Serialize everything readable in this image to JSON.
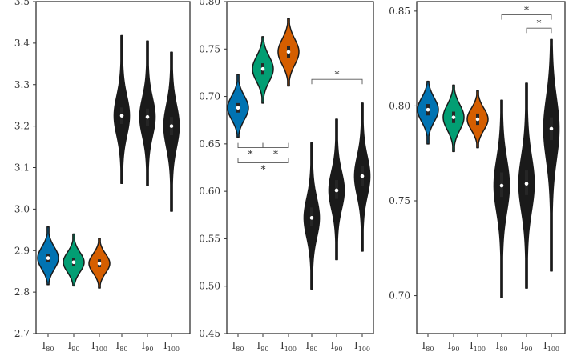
{
  "chart_data": [
    {
      "type": "violin",
      "ylim": [
        2.7,
        3.5
      ],
      "yticks": [
        2.7,
        2.8,
        2.9,
        3.0,
        3.1,
        3.2,
        3.3,
        3.4,
        3.5
      ],
      "ytick_labels": [
        "2.7",
        "2.8",
        "2.9",
        "3.0",
        "3.1",
        "3.2",
        "3.3",
        "3.4",
        "3.5"
      ],
      "categories": [
        {
          "base": "I",
          "sub": "80"
        },
        {
          "base": "I",
          "sub": "90"
        },
        {
          "base": "I",
          "sub": "100"
        },
        {
          "base": "I",
          "sub": "80"
        },
        {
          "base": "I",
          "sub": "90"
        },
        {
          "base": "I",
          "sub": "100"
        }
      ],
      "violins": [
        {
          "median": 2.882,
          "min": 2.818,
          "max": 2.957,
          "q1": 2.872,
          "q3": 2.892,
          "color": "#0173b2",
          "shape": "bulb"
        },
        {
          "median": 2.872,
          "min": 2.815,
          "max": 2.94,
          "q1": 2.862,
          "q3": 2.882,
          "color": "#029e73",
          "shape": "bulb"
        },
        {
          "median": 2.869,
          "min": 2.81,
          "max": 2.93,
          "q1": 2.86,
          "q3": 2.879,
          "color": "#d55e00",
          "shape": "bulb"
        },
        {
          "median": 3.225,
          "min": 3.062,
          "max": 3.418,
          "q1": 3.205,
          "q3": 3.245,
          "color": "#1a1a1a",
          "shape": "long"
        },
        {
          "median": 3.222,
          "min": 3.057,
          "max": 3.405,
          "q1": 3.2,
          "q3": 3.242,
          "color": "#1a1a1a",
          "shape": "long"
        },
        {
          "median": 3.2,
          "min": 2.995,
          "max": 3.378,
          "q1": 3.178,
          "q3": 3.222,
          "color": "#1a1a1a",
          "shape": "long"
        }
      ],
      "annotations": []
    },
    {
      "type": "violin",
      "ylim": [
        0.45,
        0.8
      ],
      "yticks": [
        0.45,
        0.5,
        0.55,
        0.6,
        0.65,
        0.7,
        0.75,
        0.8
      ],
      "ytick_labels": [
        "0.45",
        "0.50",
        "0.55",
        "0.60",
        "0.65",
        "0.70",
        "0.75",
        "0.80"
      ],
      "categories": [
        {
          "base": "I",
          "sub": "80"
        },
        {
          "base": "I",
          "sub": "90"
        },
        {
          "base": "I",
          "sub": "100"
        },
        {
          "base": "I",
          "sub": "80"
        },
        {
          "base": "I",
          "sub": "90"
        },
        {
          "base": "I",
          "sub": "100"
        }
      ],
      "violins": [
        {
          "median": 0.688,
          "min": 0.657,
          "max": 0.723,
          "q1": 0.683,
          "q3": 0.693,
          "color": "#0173b2",
          "shape": "bulb"
        },
        {
          "median": 0.729,
          "min": 0.693,
          "max": 0.763,
          "q1": 0.723,
          "q3": 0.735,
          "color": "#029e73",
          "shape": "bulb"
        },
        {
          "median": 0.747,
          "min": 0.711,
          "max": 0.782,
          "q1": 0.741,
          "q3": 0.753,
          "color": "#d55e00",
          "shape": "bulb"
        },
        {
          "median": 0.572,
          "min": 0.497,
          "max": 0.651,
          "q1": 0.563,
          "q3": 0.583,
          "color": "#1a1a1a",
          "shape": "long"
        },
        {
          "median": 0.601,
          "min": 0.528,
          "max": 0.676,
          "q1": 0.592,
          "q3": 0.612,
          "color": "#1a1a1a",
          "shape": "long"
        },
        {
          "median": 0.616,
          "min": 0.537,
          "max": 0.693,
          "q1": 0.606,
          "q3": 0.627,
          "color": "#1a1a1a",
          "shape": "long"
        }
      ],
      "annotations": [
        {
          "from": 0,
          "to": 1,
          "y": 0.646,
          "side": "below",
          "label": "*"
        },
        {
          "from": 1,
          "to": 2,
          "y": 0.646,
          "side": "below",
          "label": "*"
        },
        {
          "from": 0,
          "to": 2,
          "y": 0.63,
          "side": "below",
          "label": "*"
        },
        {
          "from": 3,
          "to": 5,
          "y": 0.718,
          "side": "above",
          "label": "*"
        }
      ]
    },
    {
      "type": "violin",
      "ylim": [
        0.68,
        0.855
      ],
      "yticks": [
        0.7,
        0.75,
        0.8,
        0.85
      ],
      "ytick_labels": [
        "0.70",
        "0.75",
        "0.80",
        "0.85"
      ],
      "categories": [
        {
          "base": "I",
          "sub": "80"
        },
        {
          "base": "I",
          "sub": "90"
        },
        {
          "base": "I",
          "sub": "100"
        },
        {
          "base": "I",
          "sub": "80"
        },
        {
          "base": "I",
          "sub": "90"
        },
        {
          "base": "I",
          "sub": "100"
        }
      ],
      "violins": [
        {
          "median": 0.798,
          "min": 0.78,
          "max": 0.813,
          "q1": 0.795,
          "q3": 0.801,
          "color": "#0173b2",
          "shape": "bulb"
        },
        {
          "median": 0.794,
          "min": 0.776,
          "max": 0.811,
          "q1": 0.791,
          "q3": 0.797,
          "color": "#029e73",
          "shape": "bulb"
        },
        {
          "median": 0.793,
          "min": 0.778,
          "max": 0.808,
          "q1": 0.79,
          "q3": 0.796,
          "color": "#d55e00",
          "shape": "bulb"
        },
        {
          "median": 0.758,
          "min": 0.699,
          "max": 0.803,
          "q1": 0.752,
          "q3": 0.765,
          "color": "#1a1a1a",
          "shape": "long"
        },
        {
          "median": 0.759,
          "min": 0.704,
          "max": 0.812,
          "q1": 0.753,
          "q3": 0.766,
          "color": "#1a1a1a",
          "shape": "long"
        },
        {
          "median": 0.788,
          "min": 0.713,
          "max": 0.835,
          "q1": 0.782,
          "q3": 0.794,
          "color": "#1a1a1a",
          "shape": "long"
        }
      ],
      "annotations": [
        {
          "from": 3,
          "to": 5,
          "y": 0.848,
          "side": "above",
          "label": "*"
        },
        {
          "from": 4,
          "to": 5,
          "y": 0.841,
          "side": "above",
          "label": "*"
        }
      ]
    }
  ]
}
